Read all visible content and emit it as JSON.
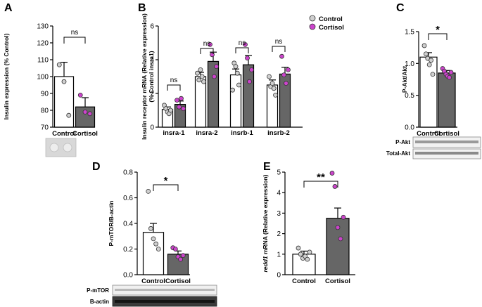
{
  "colors": {
    "control_fill": "#ffffff",
    "cortisol_bar": "#666666",
    "control_dot": "#cfcfcf",
    "cortisol_dot": "#cc44cc",
    "axis": "#000000"
  },
  "chart_data": [
    {
      "panel": "A",
      "type": "bar",
      "ylabel": "Insulin expression (% Control)",
      "ylim": [
        70,
        130
      ],
      "yticks": [
        70,
        80,
        90,
        100,
        110,
        120,
        130
      ],
      "categories": [
        "Control",
        "Cortisol"
      ],
      "values": [
        100,
        82
      ],
      "errors": [
        8.5,
        5.5
      ],
      "points": [
        [
          107,
          97,
          77
        ],
        [
          89,
          79,
          78
        ]
      ],
      "significance": [
        "ns"
      ],
      "grid": false
    },
    {
      "panel": "B",
      "type": "bar",
      "ylabel_line1": "Insulin receptor mRNA (Relative expression)",
      "ylabel_line2": "(% Control insra1)",
      "ylim": [
        0,
        6
      ],
      "yticks": [
        0,
        2,
        4,
        6
      ],
      "categories": [
        "insra-1",
        "insra-2",
        "insrb-1",
        "insrb-2"
      ],
      "series": [
        {
          "name": "Control",
          "values": [
            1.05,
            3.0,
            3.1,
            2.5
          ],
          "errors": [
            0.15,
            0.25,
            0.35,
            0.3
          ],
          "points": [
            [
              1.3,
              1.1,
              0.9,
              0.8,
              1.0
            ],
            [
              3.2,
              2.8,
              3.4,
              3.0,
              2.7
            ],
            [
              2.2,
              3.8,
              3.6,
              3.2,
              2.5
            ],
            [
              3.0,
              2.4,
              2.6,
              2.3,
              1.9
            ]
          ]
        },
        {
          "name": "Cortisol",
          "values": [
            1.35,
            3.9,
            3.7,
            3.15
          ],
          "errors": [
            0.2,
            0.55,
            0.55,
            0.4
          ],
          "points": [
            [
              1.6,
              1.2,
              1.7,
              1.1
            ],
            [
              4.9,
              4.3,
              3.0,
              3.6
            ],
            [
              4.9,
              4.1,
              2.7,
              3.4
            ],
            [
              4.2,
              3.1,
              2.6,
              3.4
            ]
          ]
        }
      ],
      "significance": [
        "ns",
        "ns",
        "ns",
        "ns"
      ],
      "legend_placement": "top-right",
      "grid": false
    },
    {
      "panel": "C",
      "type": "bar",
      "ylabel": "P-Akt/Akt",
      "ylim": [
        0,
        1.5
      ],
      "yticks": [
        "0.0",
        "0.5",
        "1.0",
        "1.5"
      ],
      "categories": [
        "Control",
        "Cortisol"
      ],
      "values": [
        1.1,
        0.85
      ],
      "errors": [
        0.07,
        0.04
      ],
      "points": [
        [
          1.28,
          1.15,
          1.08,
          0.98,
          1.05,
          0.83
        ],
        [
          0.92,
          0.88,
          0.83,
          0.8,
          0.78,
          0.86
        ]
      ],
      "significance": [
        "*"
      ],
      "blots": [
        "P-Akt",
        "Total-Akt"
      ],
      "grid": false
    },
    {
      "panel": "D",
      "type": "bar",
      "ylabel": "P-mTOR/B-actin",
      "ylim": [
        0,
        0.8
      ],
      "yticks": [
        "0.0",
        "0.2",
        "0.4",
        "0.6",
        "0.8"
      ],
      "categories": [
        "Control",
        "Cortisol"
      ],
      "values": [
        0.33,
        0.16
      ],
      "errors": [
        0.07,
        0.025
      ],
      "points": [
        [
          0.65,
          0.36,
          0.28,
          0.24,
          0.2
        ],
        [
          0.21,
          0.2,
          0.14,
          0.12,
          0.15
        ]
      ],
      "significance": [
        "*"
      ],
      "blots": [
        "P-mTOR",
        "B-actin"
      ],
      "grid": false
    },
    {
      "panel": "E",
      "type": "bar",
      "ylabel_gene": "redd1",
      "ylabel_rest": " mRNA (Relative expression)",
      "ylim": [
        0,
        5
      ],
      "yticks": [
        0,
        1,
        2,
        3,
        4,
        5
      ],
      "categories": [
        "Control",
        "Cortisol"
      ],
      "values": [
        1.0,
        2.75
      ],
      "errors": [
        0.15,
        0.5
      ],
      "points": [
        [
          1.3,
          1.0,
          0.8,
          0.9,
          0.75,
          1.1
        ],
        [
          4.95,
          4.3,
          2.3,
          1.75,
          2.8
        ]
      ],
      "significance": [
        "**"
      ],
      "grid": false
    }
  ]
}
